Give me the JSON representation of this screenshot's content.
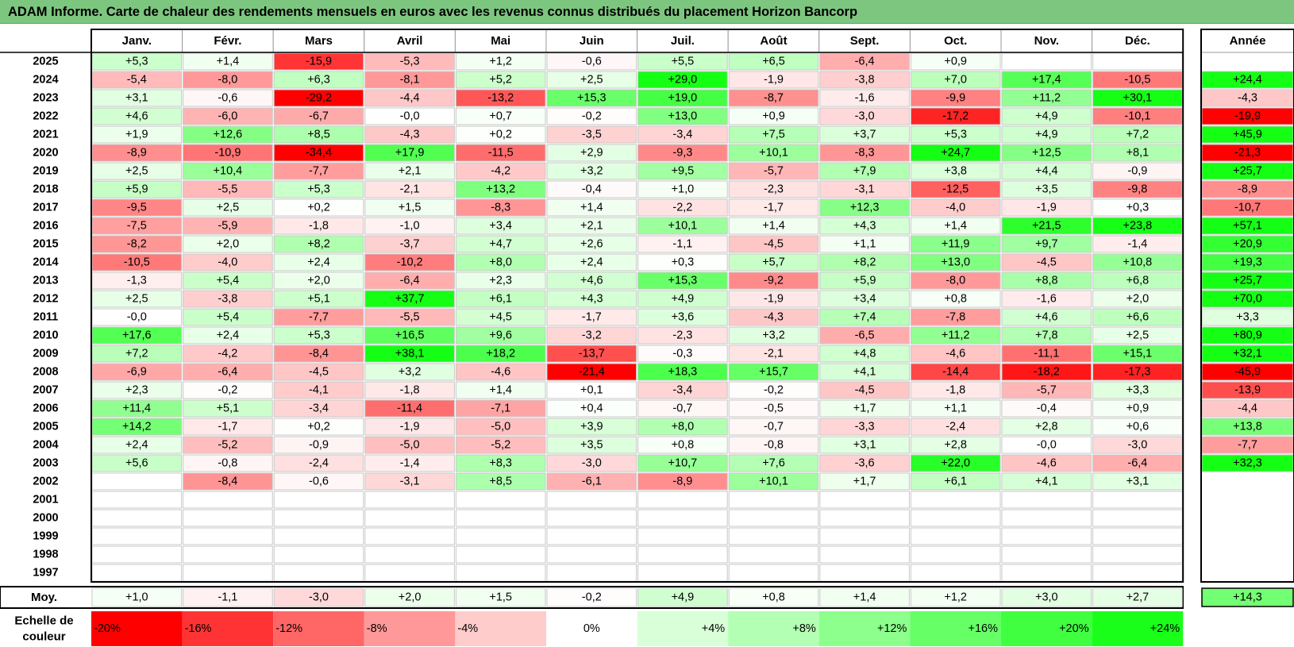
{
  "title": "ADAM Informe. Carte de chaleur des rendements mensuels en euros avec les revenus connus distribués du placement Horizon Bancorp",
  "chart_data": {
    "type": "heatmap",
    "months": [
      "Janv.",
      "Févr.",
      "Mars",
      "Avril",
      "Mai",
      "Juin",
      "Juil.",
      "Août",
      "Sept.",
      "Oct.",
      "Nov.",
      "Déc."
    ],
    "year_header": "Année",
    "avg_label": "Moy.",
    "years": [
      "2025",
      "2024",
      "2023",
      "2022",
      "2021",
      "2020",
      "2019",
      "2018",
      "2017",
      "2016",
      "2015",
      "2014",
      "2013",
      "2012",
      "2011",
      "2010",
      "2009",
      "2008",
      "2007",
      "2006",
      "2005",
      "2004",
      "2003",
      "2002",
      "2001",
      "2000",
      "1999",
      "1998",
      "1997"
    ],
    "values": [
      [
        "+5,3",
        "+1,4",
        "-15,9",
        "-5,3",
        "+1,2",
        "-0,6",
        "+5,5",
        "+6,5",
        "-6,4",
        "+0,9",
        "",
        ""
      ],
      [
        "-5,4",
        "-8,0",
        "+6,3",
        "-8,1",
        "+5,2",
        "+2,5",
        "+29,0",
        "-1,9",
        "-3,8",
        "+7,0",
        "+17,4",
        "-10,5"
      ],
      [
        "+3,1",
        "-0,6",
        "-29,2",
        "-4,4",
        "-13,2",
        "+15,3",
        "+19,0",
        "-8,7",
        "-1,6",
        "-9,9",
        "+11,2",
        "+30,1"
      ],
      [
        "+4,6",
        "-6,0",
        "-6,7",
        "-0,0",
        "+0,7",
        "-0,2",
        "+13,0",
        "+0,9",
        "-3,0",
        "-17,2",
        "+4,9",
        "-10,1"
      ],
      [
        "+1,9",
        "+12,6",
        "+8,5",
        "-4,3",
        "+0,2",
        "-3,5",
        "-3,4",
        "+7,5",
        "+3,7",
        "+5,3",
        "+4,9",
        "+7,2"
      ],
      [
        "-8,9",
        "-10,9",
        "-34,4",
        "+17,9",
        "-11,5",
        "+2,9",
        "-9,3",
        "+10,1",
        "-8,3",
        "+24,7",
        "+12,5",
        "+8,1"
      ],
      [
        "+2,5",
        "+10,4",
        "-7,7",
        "+2,1",
        "-4,2",
        "+3,2",
        "+9,5",
        "-5,7",
        "+7,9",
        "+3,8",
        "+4,4",
        "-0,9"
      ],
      [
        "+5,9",
        "-5,5",
        "+5,3",
        "-2,1",
        "+13,2",
        "-0,4",
        "+1,0",
        "-2,3",
        "-3,1",
        "-12,5",
        "+3,5",
        "-9,8"
      ],
      [
        "-9,5",
        "+2,5",
        "+0,2",
        "+1,5",
        "-8,3",
        "+1,4",
        "-2,2",
        "-1,7",
        "+12,3",
        "-4,0",
        "-1,9",
        "+0,3"
      ],
      [
        "-7,5",
        "-5,9",
        "-1,8",
        "-1,0",
        "+3,4",
        "+2,1",
        "+10,1",
        "+1,4",
        "+4,3",
        "+1,4",
        "+21,5",
        "+23,8"
      ],
      [
        "-8,2",
        "+2,0",
        "+8,2",
        "-3,7",
        "+4,7",
        "+2,6",
        "-1,1",
        "-4,5",
        "+1,1",
        "+11,9",
        "+9,7",
        "-1,4"
      ],
      [
        "-10,5",
        "-4,0",
        "+2,4",
        "-10,2",
        "+8,0",
        "+2,4",
        "+0,3",
        "+5,7",
        "+8,2",
        "+13,0",
        "-4,5",
        "+10,8"
      ],
      [
        "-1,3",
        "+5,4",
        "+2,0",
        "-6,4",
        "+2,3",
        "+4,6",
        "+15,3",
        "-9,2",
        "+5,9",
        "-8,0",
        "+8,8",
        "+6,8"
      ],
      [
        "+2,5",
        "-3,8",
        "+5,1",
        "+37,7",
        "+6,1",
        "+4,3",
        "+4,9",
        "-1,9",
        "+3,4",
        "+0,8",
        "-1,6",
        "+2,0"
      ],
      [
        "-0,0",
        "+5,4",
        "-7,7",
        "-5,5",
        "+4,5",
        "-1,7",
        "+3,6",
        "-4,3",
        "+7,4",
        "-7,8",
        "+4,6",
        "+6,6"
      ],
      [
        "+17,6",
        "+2,4",
        "+5,3",
        "+16,5",
        "+9,6",
        "-3,2",
        "-2,3",
        "+3,2",
        "-6,5",
        "+11,2",
        "+7,8",
        "+2,5"
      ],
      [
        "+7,2",
        "-4,2",
        "-8,4",
        "+38,1",
        "+18,2",
        "-13,7",
        "-0,3",
        "-2,1",
        "+4,8",
        "-4,6",
        "-11,1",
        "+15,1"
      ],
      [
        "-6,9",
        "-6,4",
        "-4,5",
        "+3,2",
        "-4,6",
        "-21,4",
        "+18,3",
        "+15,7",
        "+4,1",
        "-14,4",
        "-18,2",
        "-17,3"
      ],
      [
        "+2,3",
        "-0,2",
        "-4,1",
        "-1,8",
        "+1,4",
        "+0,1",
        "-3,4",
        "-0,2",
        "-4,5",
        "-1,8",
        "-5,7",
        "+3,3"
      ],
      [
        "+11,4",
        "+5,1",
        "-3,4",
        "-11,4",
        "-7,1",
        "+0,4",
        "-0,7",
        "-0,5",
        "+1,7",
        "+1,1",
        "-0,4",
        "+0,9"
      ],
      [
        "+14,2",
        "-1,7",
        "+0,2",
        "-1,9",
        "-5,0",
        "+3,9",
        "+8,0",
        "-0,7",
        "-3,3",
        "-2,4",
        "+2,8",
        "+0,6"
      ],
      [
        "+2,4",
        "-5,2",
        "-0,9",
        "-5,0",
        "-5,2",
        "+3,5",
        "+0,8",
        "-0,8",
        "+3,1",
        "+2,8",
        "-0,0",
        "-3,0"
      ],
      [
        "+5,6",
        "-0,8",
        "-2,4",
        "-1,4",
        "+8,3",
        "-3,0",
        "+10,7",
        "+7,6",
        "-3,6",
        "+22,0",
        "-4,6",
        "-6,4"
      ],
      [
        "",
        "-8,4",
        "-0,6",
        "-3,1",
        "+8,5",
        "-6,1",
        "-8,9",
        "+10,1",
        "+1,7",
        "+6,1",
        "+4,1",
        "+3,1"
      ],
      [
        "",
        "",
        "",
        "",
        "",
        "",
        "",
        "",
        "",
        "",
        "",
        ""
      ],
      [
        "",
        "",
        "",
        "",
        "",
        "",
        "",
        "",
        "",
        "",
        "",
        ""
      ],
      [
        "",
        "",
        "",
        "",
        "",
        "",
        "",
        "",
        "",
        "",
        "",
        ""
      ],
      [
        "",
        "",
        "",
        "",
        "",
        "",
        "",
        "",
        "",
        "",
        "",
        ""
      ],
      [
        "",
        "",
        "",
        "",
        "",
        "",
        "",
        "",
        "",
        "",
        "",
        ""
      ]
    ],
    "annual": [
      "",
      "+24,4",
      "-4,3",
      "-19,9",
      "+45,9",
      "-21,3",
      "+25,7",
      "-8,9",
      "-10,7",
      "+57,1",
      "+20,9",
      "+19,3",
      "+25,7",
      "+70,0",
      "+3,3",
      "+80,9",
      "+32,1",
      "-45,9",
      "-13,9",
      "-4,4",
      "+13,8",
      "-7,7",
      "+32,3",
      "",
      "",
      "",
      "",
      "",
      ""
    ],
    "average": [
      "+1,0",
      "-1,1",
      "-3,0",
      "+2,0",
      "+1,5",
      "-0,2",
      "+4,9",
      "+0,8",
      "+1,4",
      "+1,2",
      "+3,0",
      "+2,7"
    ],
    "average_annual": "+14,3",
    "color_scale_label": [
      "Echelle de",
      "couleur"
    ],
    "color_scale": [
      {
        "label": "-20%",
        "value": -20,
        "color": "#ff0000"
      },
      {
        "label": "-16%",
        "value": -16,
        "color": "#ff3333"
      },
      {
        "label": "-12%",
        "value": -12,
        "color": "#ff6666"
      },
      {
        "label": "-8%",
        "value": -8,
        "color": "#ff9999"
      },
      {
        "label": "-4%",
        "value": -4,
        "color": "#ffcccc"
      },
      {
        "label": "0%",
        "value": 0,
        "color": "#ffffff"
      },
      {
        "label": "+4%",
        "value": 4,
        "color": "#d9ffd9"
      },
      {
        "label": "+8%",
        "value": 8,
        "color": "#b3ffb3"
      },
      {
        "label": "+12%",
        "value": 12,
        "color": "#8cff8c"
      },
      {
        "label": "+16%",
        "value": 16,
        "color": "#66ff66"
      },
      {
        "label": "+20%",
        "value": 20,
        "color": "#40ff40"
      },
      {
        "label": "+24%",
        "value": 24,
        "color": "#1aff1a"
      }
    ]
  }
}
